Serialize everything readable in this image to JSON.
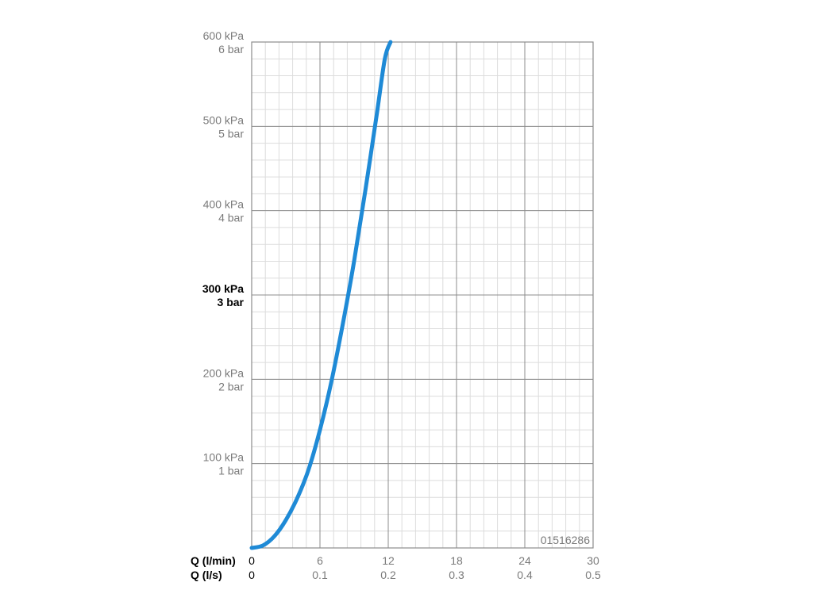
{
  "chart_data": {
    "type": "line",
    "title": "",
    "code": "01516286",
    "x_axis_primary": {
      "label": "Q (l/min)",
      "min": 0,
      "max": 30,
      "ticks": [
        "0",
        "6",
        "12",
        "18",
        "24",
        "30"
      ]
    },
    "x_axis_secondary": {
      "label": "Q (l/s)",
      "ticks": [
        "0",
        "0.1",
        "0.2",
        "0.3",
        "0.4",
        "0.5"
      ]
    },
    "y_axis": {
      "min": 0,
      "max": 600,
      "unit": "kPa",
      "ticks": [
        {
          "value": 100,
          "kpa": "100 kPa",
          "bar": "1 bar",
          "bold": false
        },
        {
          "value": 200,
          "kpa": "200 kPa",
          "bar": "2 bar",
          "bold": false
        },
        {
          "value": 300,
          "kpa": "300 kPa",
          "bar": "3 bar",
          "bold": true
        },
        {
          "value": 400,
          "kpa": "400 kPa",
          "bar": "4 bar",
          "bold": false
        },
        {
          "value": 500,
          "kpa": "500 kPa",
          "bar": "5 bar",
          "bold": false
        },
        {
          "value": 600,
          "kpa": "600 kPa",
          "bar": "6 bar",
          "bold": false
        }
      ]
    },
    "grid": true,
    "series": [
      {
        "color": "#1f8ad6",
        "points": [
          {
            "x": 0,
            "y": 0
          },
          {
            "x": 1,
            "y": 3
          },
          {
            "x": 2,
            "y": 14
          },
          {
            "x": 3,
            "y": 33
          },
          {
            "x": 4,
            "y": 59
          },
          {
            "x": 5,
            "y": 93
          },
          {
            "x": 6,
            "y": 140
          },
          {
            "x": 7,
            "y": 197
          },
          {
            "x": 8,
            "y": 265
          },
          {
            "x": 9,
            "y": 340
          },
          {
            "x": 10,
            "y": 425
          },
          {
            "x": 11,
            "y": 515
          },
          {
            "x": 11.7,
            "y": 580
          },
          {
            "x": 12.2,
            "y": 600
          }
        ]
      }
    ]
  }
}
